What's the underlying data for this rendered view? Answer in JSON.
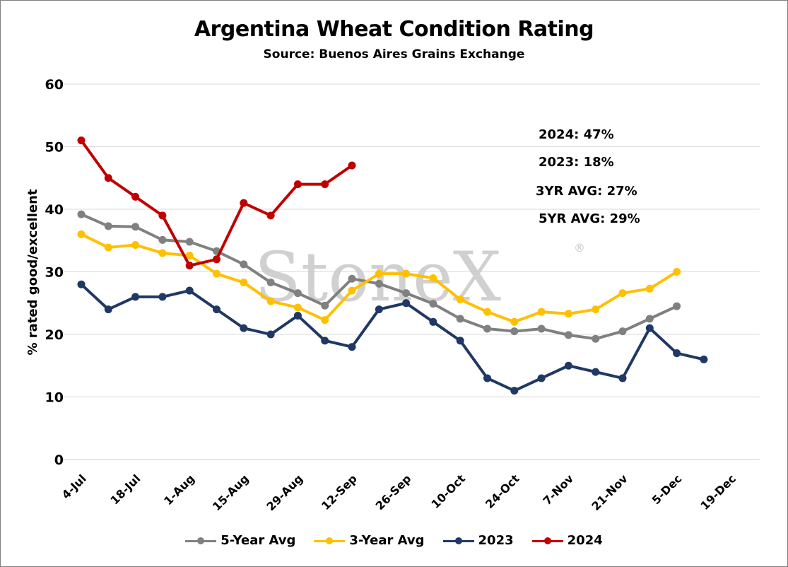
{
  "chart_data": {
    "type": "line",
    "title": "Argentina Wheat Condition Rating",
    "subtitle": "Source: Buenos Aires Grains Exchange",
    "xlabel": "",
    "ylabel": "% rated good/excellent",
    "ylim": [
      0,
      60
    ],
    "yticks": [
      "0",
      "10",
      "20",
      "30",
      "40",
      "50",
      "60"
    ],
    "xtick_labels": [
      "4-Jul",
      "18-Jul",
      "1-Aug",
      "15-Aug",
      "29-Aug",
      "12-Sep",
      "26-Sep",
      "10-Oct",
      "24-Oct",
      "7-Nov",
      "21-Nov",
      "5-Dec",
      "19-Dec"
    ],
    "x_weeks": 26,
    "grid": true,
    "legend_position": "bottom",
    "series": [
      {
        "name": "5-Year Avg",
        "color": "#808080",
        "values": [
          39.2,
          37.3,
          37.2,
          35.1,
          34.8,
          33.3,
          31.2,
          28.3,
          26.6,
          24.6,
          28.9,
          28.1,
          26.6,
          24.9,
          22.5,
          20.9,
          20.5,
          20.9,
          19.9,
          19.3,
          20.5,
          22.5,
          24.5
        ]
      },
      {
        "name": "3-Year Avg",
        "color": "#ffc000",
        "values": [
          36.0,
          33.9,
          34.3,
          33.0,
          32.6,
          29.7,
          28.3,
          25.3,
          24.3,
          22.3,
          27.0,
          29.7,
          29.7,
          29.0,
          25.6,
          23.6,
          22.0,
          23.6,
          23.3,
          24.0,
          26.6,
          27.3,
          30.0
        ]
      },
      {
        "name": "2023",
        "color": "#1f3864",
        "values": [
          28,
          24,
          26,
          26,
          27,
          24,
          21,
          20,
          23,
          19,
          18,
          24,
          25,
          22,
          19,
          13,
          11,
          13,
          15,
          14,
          13,
          21,
          17,
          16
        ]
      },
      {
        "name": "2024",
        "color": "#c00000",
        "values": [
          51,
          45,
          42,
          39,
          31,
          32,
          41,
          39,
          44,
          44,
          47
        ]
      }
    ],
    "annotations": [
      "2024: 47%",
      "2023: 18%",
      "3YR AVG: 27%",
      "5YR AVG: 29%"
    ],
    "watermark": "StoneX®"
  }
}
